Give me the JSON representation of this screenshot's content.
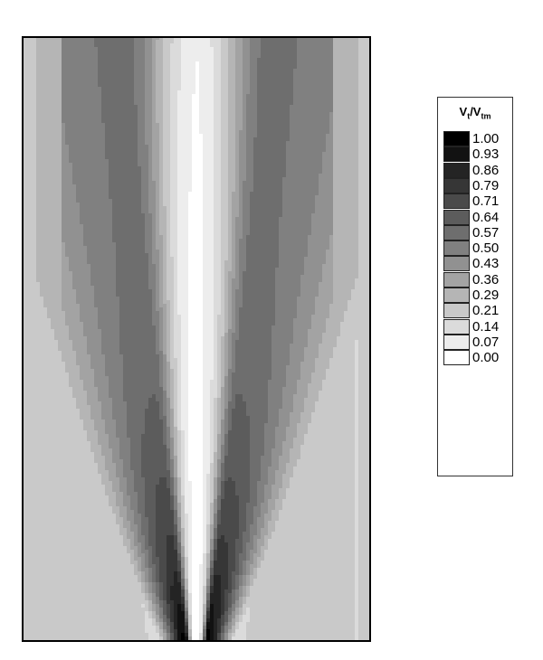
{
  "chart_data": {
    "type": "heatmap",
    "title": "",
    "xlabel": "",
    "ylabel": "",
    "colorbar": {
      "title_main": "V",
      "title_sub1": "t",
      "title_sep": "/V",
      "title_sub2": "tm",
      "levels": [
        1.0,
        0.93,
        0.86,
        0.79,
        0.71,
        0.64,
        0.57,
        0.5,
        0.43,
        0.36,
        0.29,
        0.21,
        0.14,
        0.07,
        0.0
      ],
      "level_labels": [
        "1.00",
        "0.93",
        "0.86",
        "0.79",
        "0.71",
        "0.64",
        "0.57",
        "0.50",
        "0.43",
        "0.36",
        "0.29",
        "0.21",
        "0.14",
        "0.07",
        "0.00"
      ],
      "colormap": "grayscale (0 = white, 1 = black)",
      "placement": "right"
    },
    "field_description": "filled contour of V_t/V_tm: near-zero along central vertical axis, peaks (~1.0) near bottom-center on both sides of axis, ~0.2-0.3 toward side walls",
    "grid": false
  },
  "colors": {
    "frame": "#000000",
    "background": "#ffffff"
  }
}
